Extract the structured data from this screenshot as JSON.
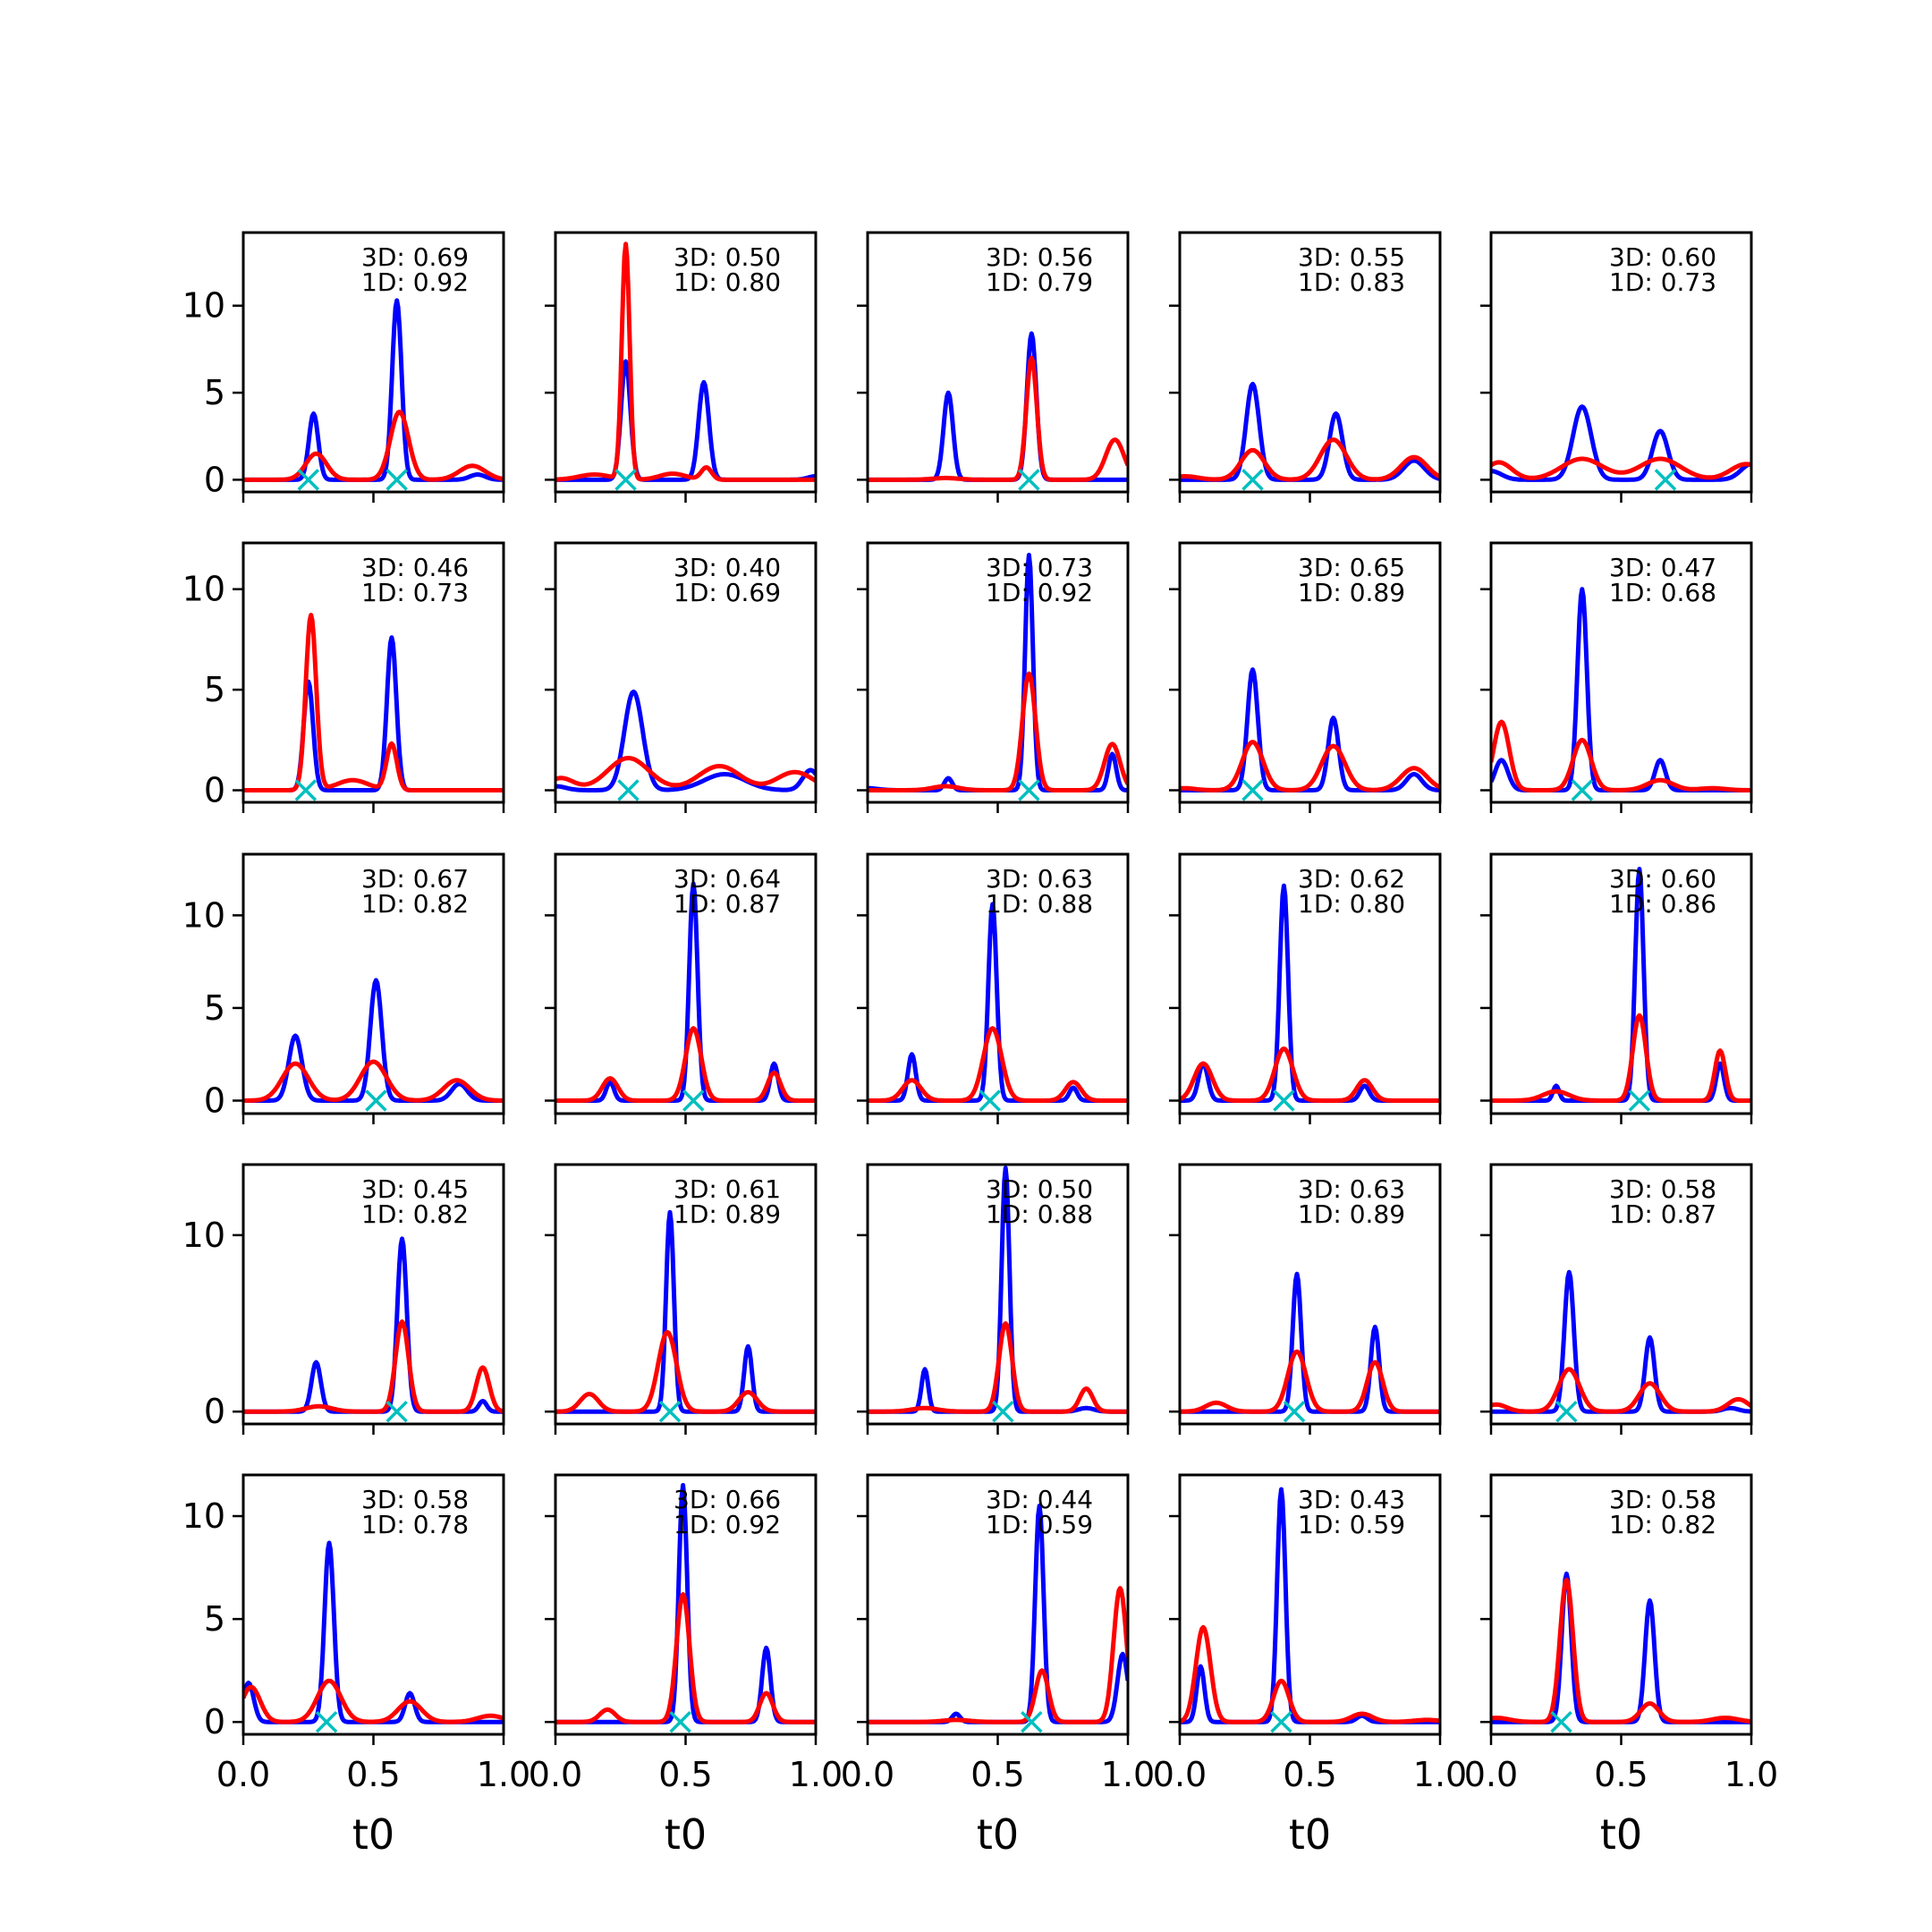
{
  "chart_data": {
    "type": "line",
    "layout": "5x5 grid of small multiples",
    "x_range": [
      0,
      1
    ],
    "xticks": [
      0.0,
      0.5,
      1.0
    ],
    "xtick_labels": [
      "0.0",
      "0.5",
      "1.0"
    ],
    "xlabel": "t0",
    "colors": {
      "series_a": "#0000ff",
      "series_b": "#ff0000",
      "marker": "#00bfbf"
    },
    "rows": [
      {
        "ylim": [
          -0.7,
          14.2
        ],
        "yticks": [
          0,
          5,
          10
        ],
        "ytick_labels": [
          "0",
          "5",
          "10"
        ]
      },
      {
        "ylim": [
          -0.6,
          12.3
        ],
        "yticks": [
          0,
          5,
          10
        ],
        "ytick_labels": [
          "0",
          "5",
          "10"
        ]
      },
      {
        "ylim": [
          -0.7,
          13.3
        ],
        "yticks": [
          0,
          5,
          10
        ],
        "ytick_labels": [
          "0",
          "5",
          "10"
        ]
      },
      {
        "ylim": [
          -0.7,
          14.0
        ],
        "yticks": [
          0,
          10
        ],
        "ytick_labels": [
          "0",
          "10"
        ]
      },
      {
        "ylim": [
          -0.6,
          12.0
        ],
        "yticks": [
          0,
          5,
          10
        ],
        "ytick_labels": [
          "0",
          "5",
          "10"
        ]
      }
    ],
    "panels": [
      {
        "label3d": "3D: 0.69",
        "label1d": "1D: 0.92",
        "markers": [
          0.25,
          0.59
        ],
        "baseline": [
          0.0,
          0.0
        ],
        "blue": [
          [
            0.27,
            3.8,
            0.018
          ],
          [
            0.59,
            10.3,
            0.018
          ],
          [
            0.9,
            0.3,
            0.03
          ]
        ],
        "red": [
          [
            0.28,
            1.5,
            0.04
          ],
          [
            0.6,
            3.9,
            0.035
          ],
          [
            0.88,
            0.8,
            0.05
          ]
        ]
      },
      {
        "label3d": "3D: 0.50",
        "label1d": "1D: 0.80",
        "markers": [
          0.27
        ],
        "baseline": [
          0.0,
          0.0
        ],
        "blue": [
          [
            0.27,
            6.8,
            0.018
          ],
          [
            0.57,
            5.6,
            0.02
          ],
          [
            1.0,
            0.2,
            0.03
          ]
        ],
        "red": [
          [
            0.27,
            13.5,
            0.015
          ],
          [
            0.15,
            0.3,
            0.06
          ],
          [
            0.45,
            0.35,
            0.05
          ],
          [
            0.58,
            0.7,
            0.02
          ]
        ]
      },
      {
        "label3d": "3D: 0.56",
        "label1d": "1D: 0.79",
        "markers": [
          0.62
        ],
        "baseline": [
          0.0,
          0.0
        ],
        "blue": [
          [
            0.31,
            5.0,
            0.018
          ],
          [
            0.63,
            8.4,
            0.018
          ]
        ],
        "red": [
          [
            0.63,
            7.0,
            0.02
          ],
          [
            0.95,
            2.3,
            0.035
          ],
          [
            0.3,
            0.1,
            0.05
          ]
        ]
      },
      {
        "label3d": "3D: 0.55",
        "label1d": "1D: 0.83",
        "markers": [
          0.28
        ],
        "baseline": [
          0.0,
          0.0
        ],
        "blue": [
          [
            0.28,
            5.5,
            0.025
          ],
          [
            0.6,
            3.8,
            0.025
          ],
          [
            0.9,
            1.1,
            0.04
          ]
        ],
        "red": [
          [
            0.28,
            1.7,
            0.045
          ],
          [
            0.59,
            2.3,
            0.05
          ],
          [
            0.9,
            1.3,
            0.05
          ],
          [
            0.02,
            0.2,
            0.05
          ]
        ]
      },
      {
        "label3d": "3D: 0.60",
        "label1d": "1D: 0.73",
        "markers": [
          0.67
        ],
        "baseline": [
          0.0,
          0.0
        ],
        "blue": [
          [
            0.35,
            4.2,
            0.035
          ],
          [
            0.65,
            2.8,
            0.03
          ],
          [
            1.0,
            0.9,
            0.04
          ],
          [
            0.0,
            0.5,
            0.04
          ]
        ],
        "red": [
          [
            0.35,
            1.2,
            0.08
          ],
          [
            0.65,
            1.2,
            0.08
          ],
          [
            0.03,
            1.0,
            0.05
          ],
          [
            0.98,
            0.9,
            0.06
          ]
        ]
      },
      {
        "label3d": "3D: 0.46",
        "label1d": "1D: 0.73",
        "markers": [
          0.24
        ],
        "baseline": [
          0.0,
          0.0
        ],
        "blue": [
          [
            0.25,
            5.4,
            0.018
          ],
          [
            0.57,
            7.6,
            0.018
          ]
        ],
        "red": [
          [
            0.26,
            8.7,
            0.02
          ],
          [
            0.57,
            2.3,
            0.02
          ],
          [
            0.42,
            0.5,
            0.06
          ]
        ]
      },
      {
        "label3d": "3D: 0.40",
        "label1d": "1D: 0.69",
        "markers": [
          0.28
        ],
        "baseline": [
          0.0,
          0.0
        ],
        "blue": [
          [
            0.3,
            4.9,
            0.035
          ],
          [
            0.65,
            0.8,
            0.08
          ],
          [
            0.98,
            1.0,
            0.03
          ],
          [
            0.0,
            0.2,
            0.04
          ]
        ],
        "red": [
          [
            0.28,
            1.6,
            0.08
          ],
          [
            0.63,
            1.2,
            0.08
          ],
          [
            0.92,
            0.9,
            0.07
          ],
          [
            0.02,
            0.6,
            0.05
          ]
        ]
      },
      {
        "label3d": "3D: 0.73",
        "label1d": "1D: 0.92",
        "markers": [
          0.62
        ],
        "baseline": [
          0.0,
          0.0
        ],
        "blue": [
          [
            0.31,
            0.6,
            0.015
          ],
          [
            0.62,
            11.7,
            0.015
          ],
          [
            0.94,
            1.8,
            0.015
          ],
          [
            0.0,
            0.1,
            0.04
          ]
        ],
        "red": [
          [
            0.62,
            5.8,
            0.025
          ],
          [
            0.94,
            2.3,
            0.03
          ],
          [
            0.3,
            0.2,
            0.05
          ]
        ]
      },
      {
        "label3d": "3D: 0.65",
        "label1d": "1D: 0.89",
        "markers": [
          0.28
        ],
        "baseline": [
          0.0,
          0.0
        ],
        "blue": [
          [
            0.28,
            6.0,
            0.02
          ],
          [
            0.59,
            3.6,
            0.02
          ],
          [
            0.9,
            0.8,
            0.03
          ]
        ],
        "red": [
          [
            0.28,
            2.4,
            0.04
          ],
          [
            0.59,
            2.2,
            0.045
          ],
          [
            0.9,
            1.1,
            0.05
          ],
          [
            0.02,
            0.1,
            0.04
          ]
        ]
      },
      {
        "label3d": "3D: 0.47",
        "label1d": "1D: 0.68",
        "markers": [
          0.35
        ],
        "baseline": [
          0.0,
          0.0
        ],
        "blue": [
          [
            0.35,
            10.0,
            0.018
          ],
          [
            0.04,
            1.5,
            0.025
          ],
          [
            0.65,
            1.5,
            0.02
          ]
        ],
        "red": [
          [
            0.04,
            3.4,
            0.03
          ],
          [
            0.35,
            2.5,
            0.035
          ],
          [
            0.65,
            0.5,
            0.05
          ],
          [
            0.85,
            0.1,
            0.05
          ]
        ]
      },
      {
        "label3d": "3D: 0.67",
        "label1d": "1D: 0.82",
        "markers": [
          0.51
        ],
        "baseline": [
          0.0,
          0.0
        ],
        "blue": [
          [
            0.2,
            3.5,
            0.025
          ],
          [
            0.51,
            6.5,
            0.022
          ],
          [
            0.83,
            0.9,
            0.03
          ]
        ],
        "red": [
          [
            0.2,
            2.0,
            0.05
          ],
          [
            0.5,
            2.1,
            0.05
          ],
          [
            0.82,
            1.1,
            0.05
          ]
        ]
      },
      {
        "label3d": "3D: 0.64",
        "label1d": "1D: 0.87",
        "markers": [
          0.53
        ],
        "baseline": [
          0.0,
          0.0
        ],
        "blue": [
          [
            0.21,
            1.0,
            0.015
          ],
          [
            0.53,
            11.7,
            0.016
          ],
          [
            0.84,
            2.0,
            0.015
          ]
        ],
        "red": [
          [
            0.21,
            1.2,
            0.03
          ],
          [
            0.53,
            3.9,
            0.03
          ],
          [
            0.84,
            1.5,
            0.025
          ]
        ]
      },
      {
        "label3d": "3D: 0.63",
        "label1d": "1D: 0.88",
        "markers": [
          0.47
        ],
        "baseline": [
          0.0,
          0.0
        ],
        "blue": [
          [
            0.17,
            2.5,
            0.015
          ],
          [
            0.48,
            10.6,
            0.016
          ],
          [
            0.79,
            0.7,
            0.015
          ]
        ],
        "red": [
          [
            0.17,
            1.1,
            0.035
          ],
          [
            0.48,
            3.9,
            0.035
          ],
          [
            0.79,
            1.0,
            0.03
          ]
        ]
      },
      {
        "label3d": "3D: 0.62",
        "label1d": "1D: 0.80",
        "markers": [
          0.4
        ],
        "baseline": [
          0.0,
          0.0
        ],
        "blue": [
          [
            0.09,
            2.0,
            0.018
          ],
          [
            0.4,
            11.6,
            0.016
          ],
          [
            0.71,
            0.8,
            0.018
          ]
        ],
        "red": [
          [
            0.09,
            2.0,
            0.035
          ],
          [
            0.4,
            2.8,
            0.035
          ],
          [
            0.71,
            1.1,
            0.03
          ]
        ]
      },
      {
        "label3d": "3D: 0.60",
        "label1d": "1D: 0.86",
        "markers": [
          0.57
        ],
        "baseline": [
          0.0,
          0.0
        ],
        "blue": [
          [
            0.25,
            0.8,
            0.012
          ],
          [
            0.57,
            12.5,
            0.016
          ],
          [
            0.88,
            2.0,
            0.015
          ]
        ],
        "red": [
          [
            0.25,
            0.5,
            0.05
          ],
          [
            0.57,
            4.6,
            0.025
          ],
          [
            0.88,
            2.7,
            0.02
          ]
        ]
      },
      {
        "label3d": "3D: 0.45",
        "label1d": "1D: 0.82",
        "markers": [
          0.59
        ],
        "baseline": [
          0.0,
          0.0
        ],
        "blue": [
          [
            0.28,
            2.8,
            0.018
          ],
          [
            0.61,
            9.8,
            0.018
          ],
          [
            0.92,
            0.6,
            0.015
          ]
        ],
        "red": [
          [
            0.29,
            0.3,
            0.05
          ],
          [
            0.61,
            5.1,
            0.025
          ],
          [
            0.92,
            2.5,
            0.025
          ]
        ]
      },
      {
        "label3d": "3D: 0.61",
        "label1d": "1D: 0.89",
        "markers": [
          0.44
        ],
        "baseline": [
          0.0,
          0.0
        ],
        "blue": [
          [
            0.44,
            11.3,
            0.015
          ],
          [
            0.74,
            3.7,
            0.015
          ]
        ],
        "red": [
          [
            0.13,
            1.0,
            0.035
          ],
          [
            0.43,
            4.5,
            0.035
          ],
          [
            0.74,
            1.1,
            0.035
          ]
        ]
      },
      {
        "label3d": "3D: 0.50",
        "label1d": "1D: 0.88",
        "markers": [
          0.52
        ],
        "baseline": [
          0.0,
          0.0
        ],
        "blue": [
          [
            0.22,
            2.4,
            0.013
          ],
          [
            0.53,
            13.8,
            0.015
          ],
          [
            0.84,
            0.2,
            0.03
          ]
        ],
        "red": [
          [
            0.22,
            0.2,
            0.05
          ],
          [
            0.53,
            5.0,
            0.025
          ],
          [
            0.84,
            1.3,
            0.025
          ]
        ]
      },
      {
        "label3d": "3D: 0.63",
        "label1d": "1D: 0.89",
        "markers": [
          0.44
        ],
        "baseline": [
          0.0,
          0.0
        ],
        "blue": [
          [
            0.45,
            7.8,
            0.016
          ],
          [
            0.75,
            4.8,
            0.016
          ]
        ],
        "red": [
          [
            0.14,
            0.5,
            0.04
          ],
          [
            0.45,
            3.4,
            0.035
          ],
          [
            0.75,
            2.8,
            0.03
          ]
        ]
      },
      {
        "label3d": "3D: 0.58",
        "label1d": "1D: 0.87",
        "markers": [
          0.29
        ],
        "baseline": [
          0.0,
          0.0
        ],
        "blue": [
          [
            0.3,
            7.9,
            0.018
          ],
          [
            0.61,
            4.2,
            0.018
          ],
          [
            0.92,
            0.2,
            0.03
          ]
        ],
        "red": [
          [
            0.3,
            2.4,
            0.04
          ],
          [
            0.61,
            1.6,
            0.04
          ],
          [
            0.95,
            0.7,
            0.04
          ],
          [
            0.02,
            0.4,
            0.04
          ]
        ]
      },
      {
        "label3d": "3D: 0.58",
        "label1d": "1D: 0.78",
        "markers": [
          0.32
        ],
        "baseline": [
          0.0,
          0.0
        ],
        "blue": [
          [
            0.33,
            8.7,
            0.018
          ],
          [
            0.64,
            1.4,
            0.018
          ],
          [
            0.02,
            1.9,
            0.02
          ]
        ],
        "red": [
          [
            0.33,
            2.0,
            0.045
          ],
          [
            0.64,
            1.0,
            0.045
          ],
          [
            0.03,
            1.7,
            0.035
          ],
          [
            0.95,
            0.3,
            0.05
          ]
        ]
      },
      {
        "label3d": "3D: 0.66",
        "label1d": "1D: 0.92",
        "markers": [
          0.48
        ],
        "baseline": [
          0.0,
          0.0
        ],
        "blue": [
          [
            0.49,
            11.5,
            0.016
          ],
          [
            0.81,
            3.6,
            0.016
          ]
        ],
        "red": [
          [
            0.49,
            6.2,
            0.025
          ],
          [
            0.81,
            1.4,
            0.025
          ],
          [
            0.2,
            0.6,
            0.03
          ]
        ]
      },
      {
        "label3d": "3D: 0.44",
        "label1d": "1D: 0.59",
        "markers": [
          0.63
        ],
        "baseline": [
          0.0,
          0.0
        ],
        "blue": [
          [
            0.34,
            0.4,
            0.015
          ],
          [
            0.66,
            10.5,
            0.016
          ],
          [
            0.98,
            3.3,
            0.02
          ]
        ],
        "red": [
          [
            0.67,
            2.5,
            0.025
          ],
          [
            0.97,
            6.5,
            0.025
          ],
          [
            0.34,
            0.1,
            0.05
          ]
        ]
      },
      {
        "label3d": "3D: 0.43",
        "label1d": "1D: 0.59",
        "markers": [
          0.39
        ],
        "baseline": [
          0.0,
          0.0
        ],
        "blue": [
          [
            0.08,
            2.7,
            0.015
          ],
          [
            0.39,
            11.3,
            0.016
          ],
          [
            0.7,
            0.3,
            0.02
          ]
        ],
        "red": [
          [
            0.09,
            4.6,
            0.028
          ],
          [
            0.39,
            2.0,
            0.03
          ],
          [
            0.7,
            0.4,
            0.04
          ],
          [
            0.95,
            0.1,
            0.05
          ]
        ]
      },
      {
        "label3d": "3D: 0.58",
        "label1d": "1D: 0.82",
        "markers": [
          0.27
        ],
        "baseline": [
          0.0,
          0.0
        ],
        "blue": [
          [
            0.29,
            7.2,
            0.018
          ],
          [
            0.61,
            5.9,
            0.018
          ]
        ],
        "red": [
          [
            0.29,
            6.9,
            0.025
          ],
          [
            0.61,
            0.9,
            0.035
          ],
          [
            0.02,
            0.2,
            0.05
          ],
          [
            0.9,
            0.2,
            0.05
          ]
        ]
      }
    ]
  }
}
